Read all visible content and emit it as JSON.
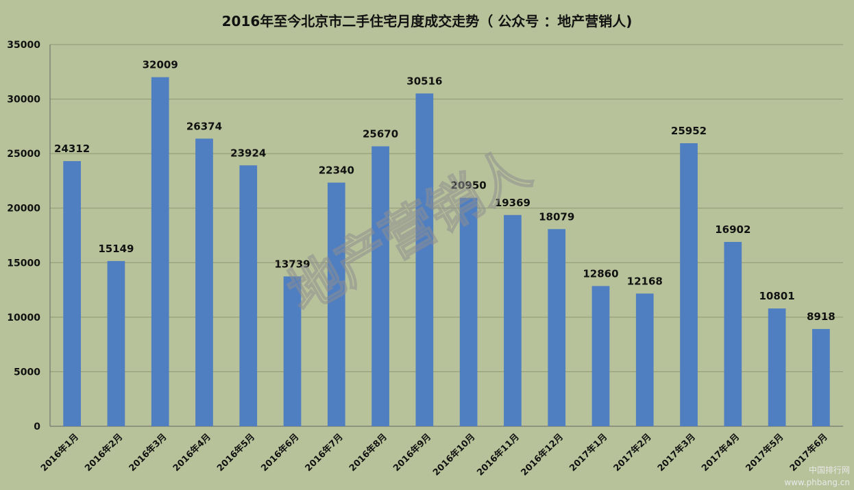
{
  "watermark": "地产营销人",
  "corner_watermark": {
    "line1": "中国排行网",
    "line2": "www.phbang.cn"
  },
  "chart_data": {
    "type": "bar",
    "title": "2016年至今北京市二手住宅月度成交走势（ 公众号 ：地产营销人)",
    "xlabel": "",
    "ylabel": "",
    "ylim": [
      0,
      35000
    ],
    "yticks": [
      0,
      5000,
      10000,
      15000,
      20000,
      25000,
      30000,
      35000
    ],
    "grid": true,
    "legend": "none",
    "bar_color": "#4f7fc1",
    "categories": [
      "2016年1月",
      "2016年2月",
      "2016年3月",
      "2016年4月",
      "2016年5月",
      "2016年6月",
      "2016年7月",
      "2016年8月",
      "2016年9月",
      "2016年10月",
      "2016年11月",
      "2016年12月",
      "2017年1月",
      "2017年2月",
      "2017年3月",
      "2017年4月",
      "2017年5月",
      "2017年6月"
    ],
    "values": [
      24312,
      15149,
      32009,
      26374,
      23924,
      13739,
      22340,
      25670,
      30516,
      20950,
      19369,
      18079,
      12860,
      12168,
      25952,
      16902,
      10801,
      8918
    ]
  }
}
